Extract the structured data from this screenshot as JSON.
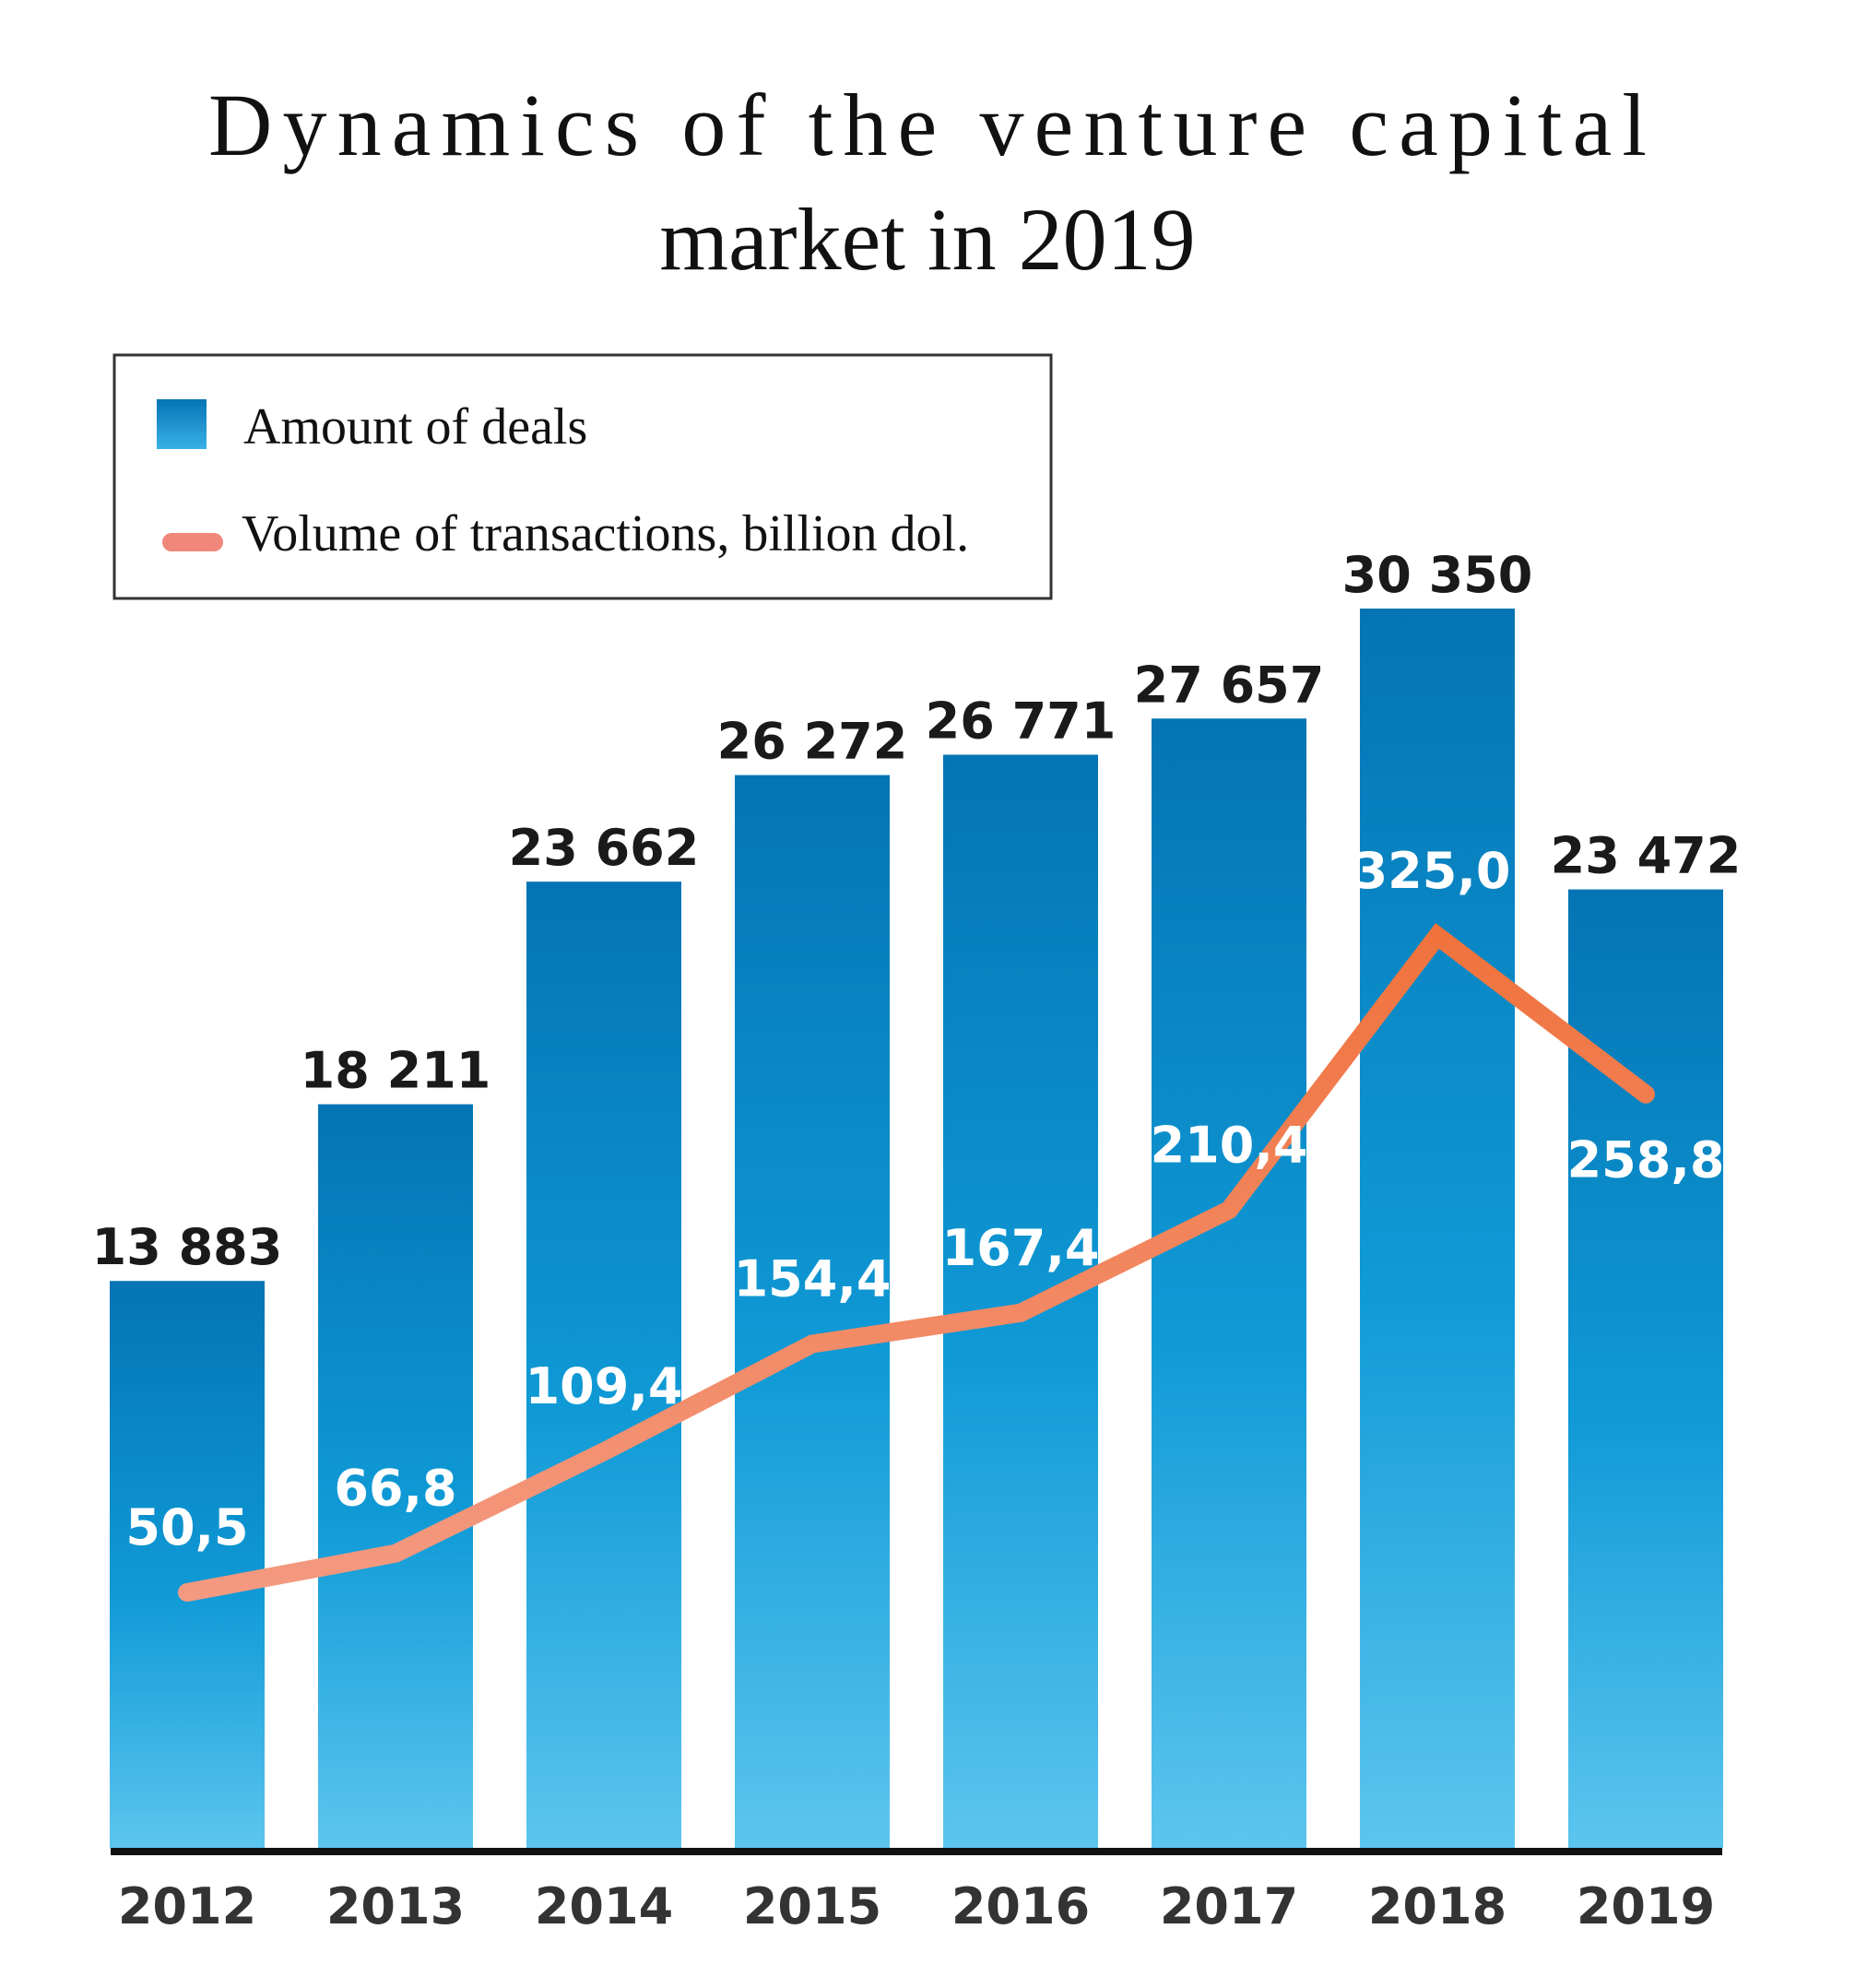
{
  "chart_data": {
    "type": "bar",
    "title_lines": [
      "Dynamics of the venture capital",
      "market in 2019"
    ],
    "categories": [
      "2012",
      "2013",
      "2014",
      "2015",
      "2016",
      "2017",
      "2018",
      "2019"
    ],
    "series": [
      {
        "name": "Amount of deals",
        "type": "bar",
        "values": [
          13883,
          18211,
          23662,
          26272,
          26771,
          27657,
          30350,
          23472
        ],
        "labels": [
          "13 883",
          "18 211",
          "23 662",
          "26 272",
          "26 771",
          "27 657",
          "30 350",
          "23 472"
        ],
        "color": "#0a7fc0"
      },
      {
        "name": "Volume of transactions, billion dol.",
        "type": "line",
        "values": [
          50.5,
          66.8,
          109.4,
          154.4,
          167.4,
          210.4,
          325.0,
          258.8
        ],
        "labels": [
          "50,5",
          "66,8",
          "109,4",
          "154,4",
          "167,4",
          "210,4",
          "325,0",
          "258,8"
        ],
        "color": "#f0723c"
      }
    ],
    "legend_position": "top-left",
    "grid": false,
    "bar_ylim": [
      0,
      30350
    ],
    "line_ylim": [
      0,
      325
    ]
  }
}
